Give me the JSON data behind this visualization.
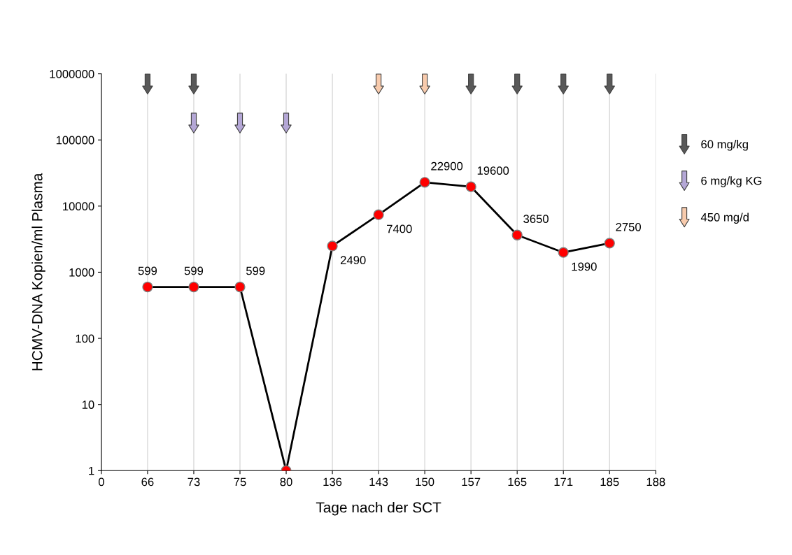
{
  "chart_data": {
    "type": "line",
    "xlabel": "Tage nach der SCT",
    "ylabel": "HCMV-DNA Kopien/ml Plasma",
    "categories": [
      "0",
      "66",
      "73",
      "75",
      "80",
      "136",
      "143",
      "150",
      "157",
      "165",
      "171",
      "185",
      "188"
    ],
    "series": [
      {
        "color": "#000000",
        "marker": "circle",
        "values": [
          null,
          599,
          599,
          599,
          1,
          2490,
          7400,
          22900,
          19600,
          3650,
          1990,
          2750,
          null
        ],
        "value_labels": [
          null,
          "599",
          "599",
          "599",
          null,
          "2490",
          "7400",
          "22900",
          "19600",
          "3650",
          "1990",
          "2750",
          null
        ]
      },
      {
        "type": "scatter",
        "name": "60 mg/kg",
        "color": "#595959",
        "values": [
          null,
          700000,
          700000,
          null,
          null,
          null,
          null,
          null,
          700000,
          700000,
          700000,
          700000,
          null
        ]
      },
      {
        "type": "scatter",
        "name": "6 mg/kg KG",
        "color": "#b4a7d6",
        "values": [
          null,
          null,
          180000,
          180000,
          180000,
          null,
          null,
          null,
          null,
          null,
          null,
          null,
          null
        ]
      },
      {
        "type": "scatter",
        "name": "450 mg/d",
        "color": "#f8cbad",
        "values": [
          null,
          null,
          null,
          null,
          null,
          null,
          700000,
          700000,
          null,
          null,
          null,
          null,
          null
        ]
      }
    ],
    "log": "y",
    "ylim": [
      1,
      1000000
    ],
    "yticks": [
      1,
      10,
      100,
      1000,
      10000,
      100000,
      1000000
    ],
    "grid": "x",
    "legend": "right"
  }
}
